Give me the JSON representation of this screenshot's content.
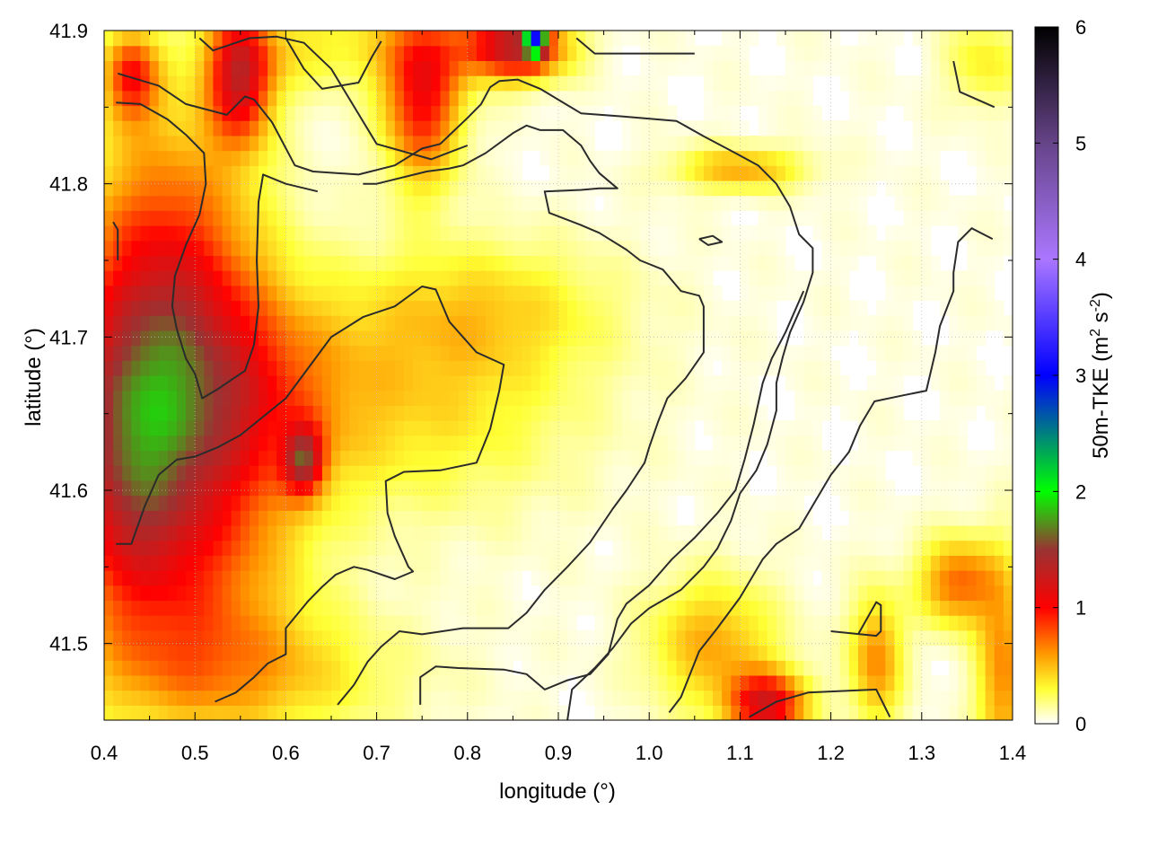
{
  "chart_data": {
    "type": "heatmap",
    "title": "",
    "xlabel": "longitude (°)",
    "ylabel": "latitude (°)",
    "xlim": [
      0.4,
      1.4
    ],
    "ylim": [
      41.45,
      41.9
    ],
    "x_ticks": [
      "0.4",
      "0.5",
      "0.6",
      "0.7",
      "0.8",
      "0.9",
      "1.0",
      "1.1",
      "1.2",
      "1.3",
      "1.4"
    ],
    "y_ticks": [
      "41.5",
      "41.6",
      "41.7",
      "41.8",
      "41.9"
    ],
    "grid": true,
    "colorbar": {
      "label_main": "50m-TKE (m",
      "label_sup1": "2",
      "label_mid": " s",
      "label_sup2": "-2",
      "label_end": ")",
      "min": 0,
      "max": 6,
      "ticks": [
        "0",
        "1",
        "2",
        "3",
        "4",
        "5",
        "6"
      ],
      "stops": [
        {
          "v": 0,
          "color": "#ffffff"
        },
        {
          "v": 0.3,
          "color": "#ffff33"
        },
        {
          "v": 0.6,
          "color": "#ff9900"
        },
        {
          "v": 1.0,
          "color": "#ff0000"
        },
        {
          "v": 1.5,
          "color": "#993333"
        },
        {
          "v": 2.0,
          "color": "#00ff00"
        },
        {
          "v": 3.0,
          "color": "#0000ff"
        },
        {
          "v": 4.0,
          "color": "#aa77ff"
        },
        {
          "v": 5.0,
          "color": "#664488"
        },
        {
          "v": 6.0,
          "color": "#000000"
        }
      ]
    },
    "tke_blobs": [
      {
        "lon": 0.47,
        "lat": 41.71,
        "sx": 0.07,
        "sy": 0.09,
        "a": 1.05
      },
      {
        "lon": 0.42,
        "lat": 41.62,
        "sx": 0.05,
        "sy": 0.07,
        "a": 0.8
      },
      {
        "lon": 0.55,
        "lat": 41.66,
        "sx": 0.08,
        "sy": 0.05,
        "a": 0.6
      },
      {
        "lon": 0.62,
        "lat": 41.62,
        "sx": 0.015,
        "sy": 0.015,
        "a": 1.0
      },
      {
        "lon": 0.5,
        "lat": 41.55,
        "sx": 0.08,
        "sy": 0.06,
        "a": 0.55
      },
      {
        "lon": 0.75,
        "lat": 41.66,
        "sx": 0.12,
        "sy": 0.05,
        "a": 0.35
      },
      {
        "lon": 0.82,
        "lat": 41.72,
        "sx": 0.1,
        "sy": 0.03,
        "a": 0.3
      },
      {
        "lon": 0.55,
        "lat": 41.48,
        "sx": 0.12,
        "sy": 0.03,
        "a": 0.4
      },
      {
        "lon": 0.55,
        "lat": 41.87,
        "sx": 0.025,
        "sy": 0.03,
        "a": 1.1
      },
      {
        "lon": 0.75,
        "lat": 41.86,
        "sx": 0.03,
        "sy": 0.04,
        "a": 1.0
      },
      {
        "lon": 0.85,
        "lat": 41.89,
        "sx": 0.04,
        "sy": 0.015,
        "a": 1.3
      },
      {
        "lon": 0.875,
        "lat": 41.895,
        "sx": 0.008,
        "sy": 0.008,
        "a": 2.0
      },
      {
        "lon": 0.43,
        "lat": 41.87,
        "sx": 0.02,
        "sy": 0.02,
        "a": 0.8
      },
      {
        "lon": 1.1,
        "lat": 41.81,
        "sx": 0.05,
        "sy": 0.01,
        "a": 0.5
      },
      {
        "lon": 1.13,
        "lat": 41.46,
        "sx": 0.03,
        "sy": 0.015,
        "a": 1.1
      },
      {
        "lon": 1.07,
        "lat": 41.5,
        "sx": 0.05,
        "sy": 0.03,
        "a": 0.5
      },
      {
        "lon": 1.25,
        "lat": 41.49,
        "sx": 0.02,
        "sy": 0.03,
        "a": 0.6
      },
      {
        "lon": 1.34,
        "lat": 41.54,
        "sx": 0.03,
        "sy": 0.02,
        "a": 0.7
      },
      {
        "lon": 1.39,
        "lat": 41.48,
        "sx": 0.02,
        "sy": 0.05,
        "a": 0.6
      },
      {
        "lon": 1.37,
        "lat": 41.88,
        "sx": 0.03,
        "sy": 0.02,
        "a": 0.3
      },
      {
        "lon": 0.64,
        "lat": 41.89,
        "sx": 0.08,
        "sy": 0.02,
        "a": 0.3
      }
    ],
    "contours": [
      [
        [
          0.415,
          41.872
        ],
        [
          0.46,
          41.864
        ],
        [
          0.49,
          41.852
        ],
        [
          0.535,
          41.845
        ],
        [
          0.555,
          41.857
        ],
        [
          0.565,
          41.855
        ],
        [
          0.585,
          41.84
        ],
        [
          0.61,
          41.812
        ],
        [
          0.63,
          41.808
        ],
        [
          0.68,
          41.806
        ],
        [
          0.72,
          41.812
        ],
        [
          0.75,
          41.823
        ],
        [
          0.77,
          41.826
        ],
        [
          0.8,
          41.843
        ],
        [
          0.815,
          41.852
        ],
        [
          0.825,
          41.863
        ],
        [
          0.835,
          41.867
        ],
        [
          0.855,
          41.868
        ],
        [
          0.88,
          41.862
        ],
        [
          0.925,
          41.846
        ],
        [
          0.97,
          41.844
        ],
        [
          1.03,
          41.841
        ],
        [
          1.06,
          41.831
        ],
        [
          1.095,
          41.82
        ],
        [
          1.12,
          41.812
        ],
        [
          1.14,
          41.8
        ],
        [
          1.155,
          41.785
        ],
        [
          1.165,
          41.767
        ],
        [
          1.18,
          41.758
        ],
        [
          1.18,
          41.742
        ],
        [
          1.17,
          41.723
        ],
        [
          1.155,
          41.703
        ],
        [
          1.147,
          41.687
        ],
        [
          1.14,
          41.67
        ],
        [
          1.14,
          41.652
        ],
        [
          1.13,
          41.63
        ],
        [
          1.118,
          41.613
        ],
        [
          1.1,
          41.598
        ],
        [
          1.09,
          41.58
        ],
        [
          1.075,
          41.562
        ],
        [
          1.06,
          41.55
        ],
        [
          1.035,
          41.535
        ],
        [
          1.0,
          41.523
        ],
        [
          0.98,
          41.513
        ],
        [
          0.96,
          41.497
        ],
        [
          0.94,
          41.484
        ],
        [
          0.915,
          41.47
        ],
        [
          0.91,
          41.45
        ]
      ],
      [
        [
          0.413,
          41.853
        ],
        [
          0.44,
          41.852
        ],
        [
          0.47,
          41.842
        ],
        [
          0.49,
          41.832
        ],
        [
          0.51,
          41.82
        ],
        [
          0.512,
          41.8
        ],
        [
          0.505,
          41.78
        ],
        [
          0.49,
          41.76
        ],
        [
          0.478,
          41.74
        ],
        [
          0.475,
          41.72
        ],
        [
          0.48,
          41.705
        ],
        [
          0.49,
          41.686
        ],
        [
          0.5,
          41.676
        ],
        [
          0.508,
          41.66
        ],
        [
          0.525,
          41.666
        ],
        [
          0.54,
          41.672
        ],
        [
          0.555,
          41.678
        ],
        [
          0.565,
          41.695
        ],
        [
          0.57,
          41.72
        ],
        [
          0.568,
          41.75
        ],
        [
          0.57,
          41.788
        ],
        [
          0.575,
          41.806
        ],
        [
          0.6,
          41.8
        ],
        [
          0.635,
          41.795
        ]
      ],
      [
        [
          0.413,
          41.565
        ],
        [
          0.43,
          41.565
        ],
        [
          0.445,
          41.59
        ],
        [
          0.46,
          41.61
        ],
        [
          0.48,
          41.62
        ],
        [
          0.5,
          41.622
        ],
        [
          0.525,
          41.628
        ],
        [
          0.55,
          41.636
        ],
        [
          0.575,
          41.648
        ],
        [
          0.6,
          41.66
        ],
        [
          0.625,
          41.68
        ],
        [
          0.65,
          41.7
        ],
        [
          0.685,
          41.713
        ],
        [
          0.72,
          41.72
        ],
        [
          0.75,
          41.733
        ],
        [
          0.765,
          41.731
        ],
        [
          0.78,
          41.71
        ],
        [
          0.795,
          41.7
        ],
        [
          0.81,
          41.69
        ],
        [
          0.84,
          41.682
        ],
        [
          0.835,
          41.665
        ],
        [
          0.825,
          41.64
        ],
        [
          0.81,
          41.618
        ],
        [
          0.77,
          41.613
        ],
        [
          0.73,
          41.612
        ],
        [
          0.71,
          41.606
        ],
        [
          0.712,
          41.585
        ],
        [
          0.72,
          41.57
        ],
        [
          0.735,
          41.55
        ],
        [
          0.74,
          41.547
        ],
        [
          0.72,
          41.542
        ],
        [
          0.69,
          41.548
        ],
        [
          0.675,
          41.55
        ],
        [
          0.655,
          41.545
        ],
        [
          0.64,
          41.537
        ],
        [
          0.625,
          41.528
        ],
        [
          0.6,
          41.51
        ],
        [
          0.6,
          41.493
        ],
        [
          0.58,
          41.487
        ],
        [
          0.565,
          41.478
        ],
        [
          0.545,
          41.468
        ],
        [
          0.522,
          41.462
        ]
      ],
      [
        [
          0.657,
          41.46
        ],
        [
          0.675,
          41.473
        ],
        [
          0.69,
          41.488
        ],
        [
          0.705,
          41.498
        ],
        [
          0.725,
          41.508
        ],
        [
          0.75,
          41.506
        ],
        [
          0.795,
          41.51
        ],
        [
          0.845,
          41.51
        ],
        [
          0.865,
          41.52
        ],
        [
          0.885,
          41.535
        ],
        [
          0.91,
          41.55
        ],
        [
          0.935,
          41.566
        ],
        [
          0.96,
          41.588
        ],
        [
          0.975,
          41.6
        ],
        [
          0.995,
          41.618
        ],
        [
          1.0,
          41.628
        ],
        [
          1.01,
          41.645
        ],
        [
          1.02,
          41.66
        ],
        [
          1.04,
          41.673
        ],
        [
          1.06,
          41.69
        ],
        [
          1.06,
          41.72
        ],
        [
          1.055,
          41.727
        ],
        [
          1.035,
          41.73
        ],
        [
          1.015,
          41.744
        ],
        [
          0.99,
          41.75
        ],
        [
          0.975,
          41.757
        ],
        [
          0.945,
          41.768
        ],
        [
          0.925,
          41.773
        ],
        [
          0.89,
          41.781
        ],
        [
          0.885,
          41.795
        ],
        [
          0.925,
          41.796
        ],
        [
          0.945,
          41.797
        ],
        [
          0.965,
          41.797
        ],
        [
          0.945,
          41.807
        ],
        [
          0.935,
          41.815
        ],
        [
          0.925,
          41.825
        ],
        [
          0.905,
          41.835
        ],
        [
          0.88,
          41.835
        ],
        [
          0.865,
          41.838
        ],
        [
          0.85,
          41.833
        ],
        [
          0.82,
          41.82
        ],
        [
          0.795,
          41.812
        ],
        [
          0.78,
          41.81
        ],
        [
          0.755,
          41.808
        ],
        [
          0.7,
          41.8
        ],
        [
          0.685,
          41.8
        ]
      ],
      [
        [
          0.748,
          41.46
        ],
        [
          0.748,
          41.478
        ],
        [
          0.765,
          41.485
        ],
        [
          0.79,
          41.484
        ],
        [
          0.84,
          41.483
        ],
        [
          0.865,
          41.48
        ],
        [
          0.885,
          41.47
        ],
        [
          0.91,
          41.476
        ],
        [
          0.935,
          41.48
        ],
        [
          0.955,
          41.493
        ],
        [
          0.965,
          41.516
        ],
        [
          0.975,
          41.526
        ],
        [
          1.0,
          41.538
        ],
        [
          1.025,
          41.555
        ],
        [
          1.05,
          41.569
        ],
        [
          1.075,
          41.585
        ],
        [
          1.095,
          41.6
        ],
        [
          1.105,
          41.62
        ],
        [
          1.115,
          41.643
        ],
        [
          1.125,
          41.67
        ],
        [
          1.135,
          41.686
        ],
        [
          1.15,
          41.703
        ],
        [
          1.17,
          41.73
        ]
      ],
      [
        [
          1.022,
          41.455
        ],
        [
          1.035,
          41.465
        ],
        [
          1.055,
          41.495
        ],
        [
          1.075,
          41.51
        ],
        [
          1.1,
          41.53
        ],
        [
          1.125,
          41.555
        ],
        [
          1.14,
          41.565
        ],
        [
          1.165,
          41.575
        ],
        [
          1.185,
          41.595
        ],
        [
          1.2,
          41.61
        ],
        [
          1.22,
          41.625
        ],
        [
          1.232,
          41.642
        ],
        [
          1.248,
          41.658
        ],
        [
          1.28,
          41.662
        ],
        [
          1.305,
          41.665
        ],
        [
          1.315,
          41.69
        ],
        [
          1.32,
          41.707
        ],
        [
          1.335,
          41.73
        ],
        [
          1.335,
          41.742
        ],
        [
          1.34,
          41.762
        ],
        [
          1.355,
          41.771
        ],
        [
          1.378,
          41.764
        ]
      ],
      [
        [
          1.11,
          41.452
        ],
        [
          1.14,
          41.462
        ],
        [
          1.175,
          41.468
        ],
        [
          1.25,
          41.47
        ],
        [
          1.265,
          41.452
        ]
      ],
      [
        [
          1.2,
          41.508
        ],
        [
          1.25,
          41.505
        ],
        [
          1.255,
          41.508
        ],
        [
          1.255,
          41.525
        ],
        [
          1.25,
          41.527
        ],
        [
          1.23,
          41.506
        ]
      ],
      [
        [
          0.505,
          41.895
        ],
        [
          0.52,
          41.887
        ],
        [
          0.56,
          41.895
        ],
        [
          0.59,
          41.896
        ],
        [
          0.62,
          41.892
        ],
        [
          0.65,
          41.875
        ],
        [
          0.7,
          41.826
        ],
        [
          0.76,
          41.816
        ],
        [
          0.8,
          41.825
        ]
      ],
      [
        [
          0.6,
          41.895
        ],
        [
          0.62,
          41.875
        ],
        [
          0.64,
          41.862
        ],
        [
          0.68,
          41.866
        ],
        [
          0.695,
          41.883
        ],
        [
          0.705,
          41.893
        ]
      ],
      [
        [
          0.92,
          41.895
        ],
        [
          0.94,
          41.885
        ],
        [
          1.02,
          41.885
        ],
        [
          1.05,
          41.885
        ]
      ],
      [
        [
          1.335,
          41.88
        ],
        [
          1.342,
          41.86
        ],
        [
          1.38,
          41.85
        ]
      ],
      [
        [
          0.41,
          41.775
        ],
        [
          0.415,
          41.77
        ],
        [
          0.415,
          41.75
        ]
      ],
      [
        [
          1.055,
          41.764
        ],
        [
          1.07,
          41.766
        ],
        [
          1.08,
          41.762
        ],
        [
          1.065,
          41.76
        ],
        [
          1.055,
          41.764
        ]
      ]
    ]
  }
}
